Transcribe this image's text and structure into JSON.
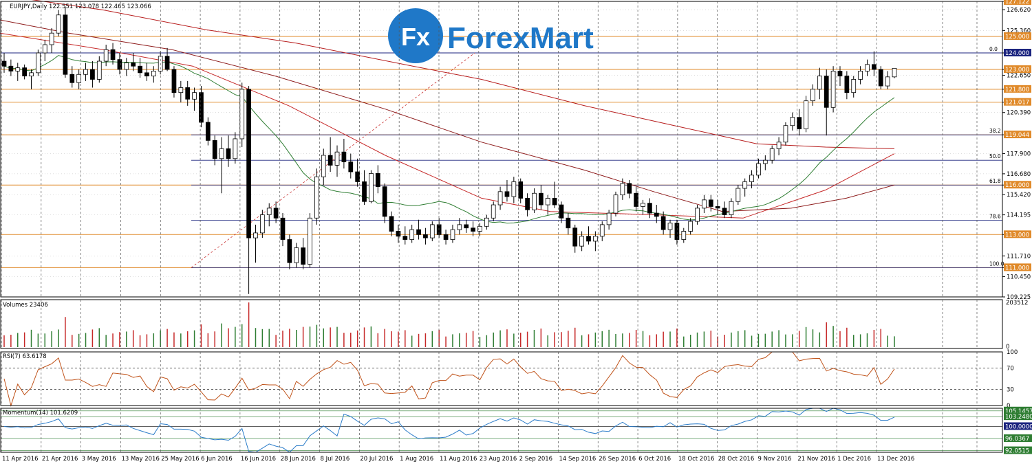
{
  "chart_data": {
    "type": "candlestick",
    "symbol_header": "EURJPY,Daily  122.551 123.078 122.465 123.066",
    "colors": {
      "bull": "#000000",
      "bear": "#000000",
      "ma20": "#2e7d32",
      "ma50": "#c62828",
      "ma100": "#b71c1c",
      "ma200": "#8e1c1c",
      "hline_orange": "#e08a2a",
      "hline_navy": "#1a237e",
      "rsi": "#c0531a",
      "momentum": "#2b7cc9",
      "volume_up": "#2e7d32",
      "volume_down": "#c62828"
    },
    "price_axis": {
      "ylim": [
        109.225,
        127.122
      ],
      "ticks": [
        "126.620",
        "125.360",
        "124.000",
        "123.000",
        "122.650",
        "121.800",
        "121.017",
        "120.390",
        "119.044",
        "117.900",
        "116.680",
        "116.000",
        "115.420",
        "114.195",
        "113.000",
        "111.710",
        "111.000",
        "110.450",
        "109.225",
        "127.122"
      ],
      "tick_values": [
        126.62,
        125.36,
        124.0,
        123.0,
        122.65,
        121.8,
        121.017,
        120.39,
        119.044,
        117.9,
        116.68,
        116.0,
        115.42,
        114.195,
        113.0,
        111.71,
        111.0,
        110.45,
        109.225,
        127.122
      ]
    },
    "x_labels": [
      "11 Apr 2016",
      "21 Apr 2016",
      "3 May 2016",
      "13 May 2016",
      "25 May 2016",
      "6 Jun 2016",
      "16 Jun 2016",
      "28 Jun 2016",
      "8 Jul 2016",
      "20 Jul 2016",
      "1 Aug 2016",
      "11 Aug 2016",
      "23 Aug 2016",
      "2 Sep 2016",
      "14 Sep 2016",
      "26 Sep 2016",
      "6 Oct 2016",
      "18 Oct 2016",
      "28 Oct 2016",
      "9 Nov 2016",
      "21 Nov 2016",
      "1 Dec 2016",
      "13 Dec 2016"
    ],
    "horizontal_levels": [
      {
        "value": 127.122,
        "label": "127.122",
        "color": "orange"
      },
      {
        "value": 125.0,
        "label": "125.000",
        "color": "orange"
      },
      {
        "value": 124.0,
        "label": "124.000",
        "color": "navy"
      },
      {
        "value": 123.0,
        "label": "123.000",
        "color": "orange"
      },
      {
        "value": 121.8,
        "label": "121.800",
        "color": "orange"
      },
      {
        "value": 121.017,
        "label": "121.017",
        "color": "orange"
      },
      {
        "value": 119.044,
        "label": "119.044",
        "color": "orange"
      },
      {
        "value": 116.0,
        "label": "116.000",
        "color": "orange"
      },
      {
        "value": 113.0,
        "label": "113.000",
        "color": "orange"
      },
      {
        "value": 111.0,
        "label": "111.000",
        "color": "orange"
      }
    ],
    "fibonacci": [
      {
        "label": "0.0",
        "value": 124.0
      },
      {
        "label": "38.2",
        "value": 119.04
      },
      {
        "label": "50.0",
        "value": 117.5
      },
      {
        "label": "61.8",
        "value": 116.0
      },
      {
        "label": "78.6",
        "value": 113.87
      },
      {
        "label": "100.0",
        "value": 111.0
      }
    ],
    "candles": [
      [
        123.5,
        124.0,
        122.8,
        123.2
      ],
      [
        123.2,
        123.6,
        122.6,
        122.9
      ],
      [
        122.9,
        123.4,
        122.3,
        123.1
      ],
      [
        123.1,
        123.3,
        122.4,
        122.6
      ],
      [
        122.6,
        123.0,
        121.8,
        122.8
      ],
      [
        122.8,
        124.2,
        122.6,
        124.0
      ],
      [
        124.0,
        124.8,
        123.5,
        124.5
      ],
      [
        124.5,
        125.5,
        124.0,
        125.2
      ],
      [
        125.2,
        126.6,
        125.0,
        126.3
      ],
      [
        126.3,
        126.8,
        122.5,
        122.7
      ],
      [
        122.7,
        123.2,
        121.9,
        122.2
      ],
      [
        122.2,
        123.0,
        121.8,
        122.7
      ],
      [
        122.7,
        123.4,
        122.3,
        123.0
      ],
      [
        123.0,
        123.5,
        121.9,
        122.4
      ],
      [
        122.4,
        123.8,
        122.2,
        123.5
      ],
      [
        123.5,
        124.5,
        123.2,
        124.2
      ],
      [
        124.2,
        124.6,
        123.3,
        123.6
      ],
      [
        123.6,
        124.0,
        122.7,
        123.0
      ],
      [
        123.0,
        123.7,
        122.6,
        123.4
      ],
      [
        123.4,
        124.0,
        122.9,
        123.2
      ],
      [
        123.2,
        123.7,
        122.5,
        122.8
      ],
      [
        122.8,
        123.4,
        122.3,
        122.6
      ],
      [
        122.6,
        123.2,
        122.2,
        122.9
      ],
      [
        122.9,
        124.1,
        122.7,
        123.8
      ],
      [
        123.8,
        124.3,
        122.9,
        123.0
      ],
      [
        123.0,
        123.2,
        121.3,
        121.6
      ],
      [
        121.6,
        122.3,
        121.0,
        121.9
      ],
      [
        121.9,
        122.3,
        120.8,
        121.2
      ],
      [
        121.2,
        121.9,
        120.5,
        121.6
      ],
      [
        121.6,
        122.0,
        119.5,
        119.8
      ],
      [
        119.8,
        120.1,
        118.4,
        118.7
      ],
      [
        118.7,
        119.0,
        117.2,
        117.6
      ],
      [
        117.6,
        118.9,
        115.5,
        118.2
      ],
      [
        118.2,
        119.0,
        117.1,
        117.6
      ],
      [
        117.6,
        119.2,
        117.3,
        118.8
      ],
      [
        118.8,
        122.2,
        118.3,
        121.8
      ],
      [
        121.8,
        122.0,
        109.4,
        112.8
      ],
      [
        112.8,
        113.6,
        111.3,
        113.1
      ],
      [
        113.1,
        114.5,
        112.8,
        114.2
      ],
      [
        114.2,
        114.9,
        113.5,
        114.6
      ],
      [
        114.6,
        115.0,
        113.7,
        114.0
      ],
      [
        114.0,
        114.3,
        112.3,
        112.7
      ],
      [
        112.7,
        113.0,
        110.9,
        111.3
      ],
      [
        111.3,
        112.5,
        111.0,
        112.2
      ],
      [
        112.2,
        112.8,
        110.9,
        111.2
      ],
      [
        111.2,
        114.3,
        111.0,
        114.0
      ],
      [
        114.0,
        117.0,
        113.6,
        116.5
      ],
      [
        116.5,
        118.2,
        116.0,
        117.8
      ],
      [
        117.8,
        118.9,
        116.8,
        117.2
      ],
      [
        117.2,
        118.4,
        116.5,
        118.0
      ],
      [
        118.0,
        118.8,
        117.0,
        117.4
      ],
      [
        117.4,
        117.9,
        116.4,
        116.8
      ],
      [
        116.8,
        117.6,
        115.9,
        116.2
      ],
      [
        116.2,
        116.9,
        114.8,
        115.0
      ],
      [
        115.0,
        116.9,
        114.9,
        116.7
      ],
      [
        116.7,
        117.2,
        115.5,
        115.9
      ],
      [
        115.9,
        116.1,
        113.7,
        114.1
      ],
      [
        114.1,
        114.4,
        112.9,
        113.2
      ],
      [
        113.2,
        113.6,
        112.5,
        112.9
      ],
      [
        112.9,
        113.5,
        112.4,
        112.7
      ],
      [
        112.7,
        113.6,
        112.5,
        113.3
      ],
      [
        113.3,
        113.9,
        112.7,
        113.0
      ],
      [
        113.0,
        113.4,
        112.4,
        112.8
      ],
      [
        112.8,
        113.8,
        112.6,
        113.6
      ],
      [
        113.6,
        114.0,
        112.8,
        113.0
      ],
      [
        113.0,
        113.3,
        112.4,
        112.7
      ],
      [
        112.7,
        113.6,
        112.5,
        113.3
      ],
      [
        113.3,
        114.0,
        113.0,
        113.6
      ],
      [
        113.6,
        113.9,
        113.1,
        113.4
      ],
      [
        113.4,
        113.8,
        112.9,
        113.2
      ],
      [
        113.2,
        113.7,
        112.9,
        113.5
      ],
      [
        113.5,
        114.2,
        113.3,
        114.0
      ],
      [
        114.0,
        115.0,
        113.8,
        114.8
      ],
      [
        114.8,
        115.9,
        114.5,
        115.6
      ],
      [
        115.6,
        116.3,
        115.0,
        115.3
      ],
      [
        115.3,
        116.5,
        114.9,
        116.2
      ],
      [
        116.2,
        116.4,
        114.9,
        115.2
      ],
      [
        115.2,
        115.5,
        114.1,
        114.5
      ],
      [
        114.5,
        115.8,
        114.3,
        115.5
      ],
      [
        115.5,
        116.0,
        114.5,
        114.8
      ],
      [
        114.8,
        115.4,
        114.2,
        115.2
      ],
      [
        115.2,
        116.2,
        114.6,
        114.8
      ],
      [
        114.8,
        115.0,
        113.7,
        114.0
      ],
      [
        114.0,
        114.3,
        113.0,
        113.4
      ],
      [
        113.4,
        113.6,
        111.9,
        112.3
      ],
      [
        112.3,
        113.2,
        112.0,
        112.9
      ],
      [
        112.9,
        113.5,
        112.4,
        112.6
      ],
      [
        112.6,
        113.2,
        112.0,
        112.9
      ],
      [
        112.9,
        113.8,
        112.6,
        113.6
      ],
      [
        113.6,
        114.5,
        113.3,
        114.3
      ],
      [
        114.3,
        115.6,
        114.1,
        115.4
      ],
      [
        115.4,
        116.4,
        115.1,
        116.1
      ],
      [
        116.1,
        116.3,
        115.2,
        115.5
      ],
      [
        115.5,
        115.9,
        114.4,
        114.7
      ],
      [
        114.7,
        115.1,
        114.2,
        114.9
      ],
      [
        114.9,
        115.2,
        114.0,
        114.3
      ],
      [
        114.3,
        114.8,
        113.7,
        114.1
      ],
      [
        114.1,
        114.4,
        113.0,
        113.3
      ],
      [
        113.3,
        113.9,
        112.8,
        113.7
      ],
      [
        113.7,
        113.9,
        112.4,
        112.7
      ],
      [
        112.7,
        113.4,
        112.5,
        113.2
      ],
      [
        113.2,
        114.0,
        113.0,
        113.8
      ],
      [
        113.8,
        114.8,
        113.6,
        114.6
      ],
      [
        114.6,
        115.4,
        114.3,
        115.1
      ],
      [
        115.1,
        115.4,
        114.4,
        114.7
      ],
      [
        114.7,
        115.1,
        114.2,
        114.6
      ],
      [
        114.6,
        115.0,
        114.0,
        114.2
      ],
      [
        114.2,
        115.2,
        114.0,
        115.0
      ],
      [
        115.0,
        116.0,
        114.8,
        115.8
      ],
      [
        115.8,
        116.4,
        115.3,
        116.2
      ],
      [
        116.2,
        116.9,
        115.8,
        116.6
      ],
      [
        116.6,
        117.6,
        116.4,
        117.3
      ],
      [
        117.3,
        117.8,
        116.9,
        117.5
      ],
      [
        117.5,
        118.4,
        117.3,
        118.2
      ],
      [
        118.2,
        118.9,
        117.8,
        118.6
      ],
      [
        118.6,
        119.8,
        118.4,
        119.6
      ],
      [
        119.6,
        120.4,
        119.3,
        120.1
      ],
      [
        120.1,
        120.6,
        119.0,
        119.4
      ],
      [
        119.4,
        121.4,
        119.2,
        121.1
      ],
      [
        121.1,
        122.1,
        120.8,
        121.8
      ],
      [
        121.8,
        123.1,
        121.2,
        122.6
      ],
      [
        122.6,
        123.0,
        119.0,
        120.7
      ],
      [
        120.7,
        123.2,
        120.4,
        122.9
      ],
      [
        122.9,
        123.2,
        122.0,
        122.6
      ],
      [
        122.6,
        122.9,
        121.2,
        121.6
      ],
      [
        121.6,
        122.6,
        121.3,
        122.4
      ],
      [
        122.4,
        123.2,
        122.1,
        122.9
      ],
      [
        122.9,
        123.6,
        122.6,
        123.3
      ],
      [
        123.3,
        124.1,
        122.6,
        123.0
      ],
      [
        123.0,
        123.2,
        121.8,
        122.0
      ],
      [
        122.0,
        122.9,
        121.8,
        122.55
      ],
      [
        122.55,
        123.08,
        122.47,
        123.07
      ]
    ],
    "rsi": {
      "label": "RSI(7) 63.6178",
      "levels": [
        100,
        70,
        30,
        0
      ]
    },
    "volume": {
      "label": "Volumes 23406",
      "max_label": "203512",
      "min_label": "0"
    },
    "momentum": {
      "label": "Momentum(14) 101.6209",
      "ticks": [
        "105.1457",
        "103.2480",
        "100.0000",
        "96.0367",
        "92.0515"
      ],
      "tick_values": [
        105.1457,
        103.248,
        100.0,
        96.0367,
        92.0515
      ]
    }
  },
  "logo": {
    "text": "ForexMart",
    "badge": "Fx"
  }
}
